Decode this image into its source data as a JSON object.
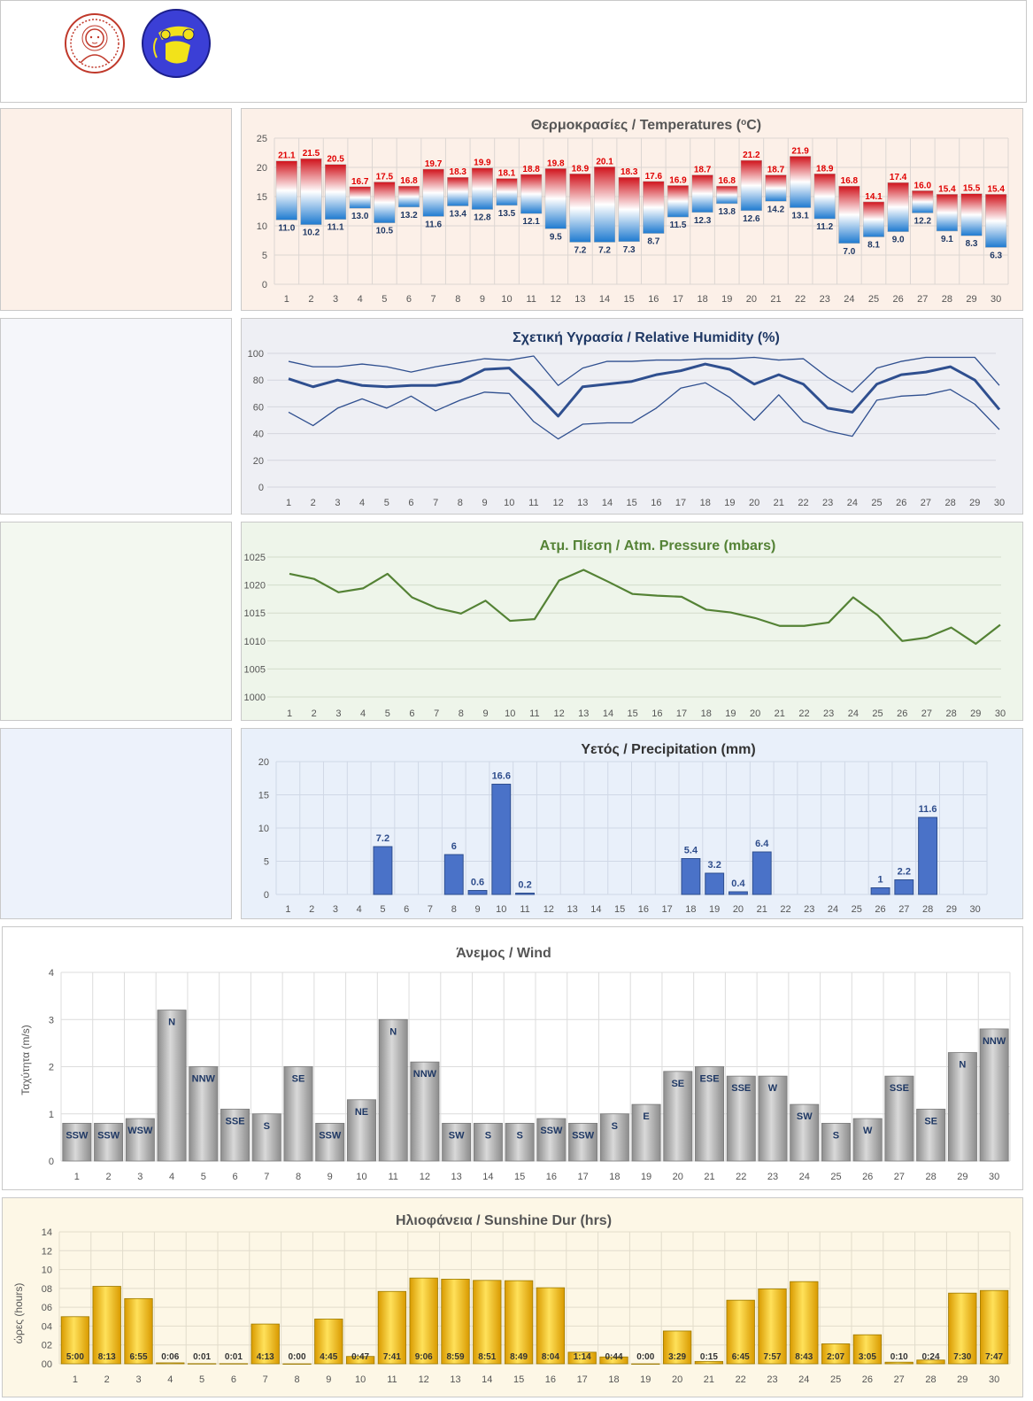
{
  "colors": {
    "temp_bg": "#fcf0e8",
    "hum_bg": "#eeeff4",
    "press_bg": "#eef5ea",
    "prec_bg": "#e9f0fa",
    "sun_bg": "#fdf7e6",
    "temp_max_label": "#e00000",
    "temp_min_label": "#1f3864",
    "humidity_line": "#2f4f8f",
    "pressure_line": "#548235",
    "pressure_title": "#548235",
    "precip_bar": "#4a72c8",
    "precip_label": "#2e4d8c",
    "wind_bar": "#a6a6a6",
    "sun_bar": "#f5c000"
  },
  "chart_data": [
    {
      "id": "temperatures",
      "type": "bar",
      "title": "Θερμοκρασίες / Temperatures (°C)",
      "title_parts": [
        "Θερμοκρασίες / Temperatures (",
        "o",
        "C)"
      ],
      "x": [
        "1",
        "2",
        "3",
        "4",
        "5",
        "6",
        "7",
        "8",
        "9",
        "10",
        "11",
        "12",
        "13",
        "14",
        "15",
        "16",
        "17",
        "18",
        "19",
        "20",
        "21",
        "22",
        "23",
        "24",
        "25",
        "26",
        "27",
        "28",
        "29",
        "30"
      ],
      "ylim": [
        0,
        25
      ],
      "yticks": [
        0,
        5,
        10,
        15,
        20,
        25
      ],
      "series": [
        {
          "name": "max",
          "values": [
            21.1,
            21.5,
            20.5,
            16.7,
            17.5,
            16.8,
            19.7,
            18.3,
            19.9,
            18.1,
            18.8,
            19.8,
            18.9,
            20.1,
            18.3,
            17.6,
            16.9,
            18.7,
            16.8,
            21.2,
            18.7,
            21.9,
            18.9,
            16.8,
            14.1,
            17.4,
            16.0,
            15.4,
            15.5,
            15.4
          ],
          "labels": [
            "21.1",
            "21.5",
            "20.5",
            "16.7",
            "17.5",
            "16.8",
            "19.7",
            "18.3",
            "19.9",
            "18.1",
            "18.8",
            "19.8",
            "18.9",
            "20.1",
            "18.3",
            "17.6",
            "16.9",
            "18.7",
            "16.8",
            "21.2",
            "18.7",
            "21.9",
            "18.9",
            "16.8",
            "14.1",
            "17.4",
            "16.0",
            "15.4",
            "15.5",
            "15.4"
          ]
        },
        {
          "name": "min",
          "values": [
            11.0,
            10.2,
            11.1,
            13.0,
            10.5,
            13.2,
            11.6,
            13.4,
            12.8,
            13.5,
            12.1,
            9.5,
            7.2,
            7.2,
            7.3,
            8.7,
            11.5,
            12.3,
            13.8,
            12.6,
            14.2,
            13.1,
            11.2,
            7.0,
            8.1,
            9.0,
            12.2,
            9.1,
            8.3,
            6.3
          ],
          "labels": [
            "11.0",
            "10.2",
            "11.1",
            "13.0",
            "10.5",
            "13.2",
            "11.6",
            "13.4",
            "12.8",
            "13.5",
            "12.1",
            "9.5",
            "7.2",
            "7.2",
            "7.3",
            "8.7",
            "11.5",
            "12.3",
            "13.8",
            "12.6",
            "14.2",
            "13.1",
            "11.2",
            "7.0",
            "8.1",
            "9.0",
            "12.2",
            "9.1",
            "8.3",
            "6.3"
          ]
        }
      ]
    },
    {
      "id": "humidity",
      "type": "line",
      "title": "Σχετική Υγρασία / Relative Humidity (%)",
      "x": [
        "1",
        "2",
        "3",
        "4",
        "5",
        "6",
        "7",
        "8",
        "9",
        "10",
        "11",
        "12",
        "13",
        "14",
        "15",
        "16",
        "17",
        "18",
        "19",
        "20",
        "21",
        "22",
        "23",
        "24",
        "25",
        "26",
        "27",
        "28",
        "29",
        "30"
      ],
      "ylim": [
        0,
        100
      ],
      "yticks": [
        0,
        20,
        40,
        60,
        80,
        100
      ],
      "series": [
        {
          "name": "max",
          "values": [
            94,
            90,
            90,
            92,
            90,
            86,
            90,
            93,
            96,
            95,
            98,
            76,
            89,
            94,
            94,
            95,
            95,
            96,
            96,
            97,
            95,
            96,
            82,
            71,
            89,
            94,
            97,
            97,
            97,
            76
          ]
        },
        {
          "name": "mean",
          "values": [
            81,
            75,
            80,
            76,
            75,
            76,
            76,
            79,
            88,
            89,
            72,
            53,
            75,
            77,
            79,
            84,
            87,
            92,
            88,
            77,
            84,
            77,
            59,
            56,
            77,
            84,
            86,
            90,
            80,
            58
          ]
        },
        {
          "name": "min",
          "values": [
            56,
            46,
            59,
            66,
            59,
            68,
            57,
            65,
            71,
            70,
            49,
            36,
            47,
            48,
            48,
            59,
            74,
            78,
            67,
            50,
            69,
            49,
            42,
            38,
            65,
            68,
            69,
            73,
            62,
            43
          ]
        }
      ]
    },
    {
      "id": "pressure",
      "type": "line",
      "title": "Ατμ. Πίεση / Atm. Pressure (mbars)",
      "x": [
        "1",
        "2",
        "3",
        "4",
        "5",
        "6",
        "7",
        "8",
        "9",
        "10",
        "11",
        "12",
        "13",
        "14",
        "15",
        "16",
        "17",
        "18",
        "19",
        "20",
        "21",
        "22",
        "23",
        "24",
        "25",
        "26",
        "27",
        "28",
        "29",
        "30"
      ],
      "ylim": [
        1000,
        1025
      ],
      "yticks": [
        1000,
        1005,
        1010,
        1015,
        1020,
        1025
      ],
      "values": [
        1022.0,
        1021.1,
        1018.7,
        1019.4,
        1022.0,
        1017.8,
        1015.9,
        1014.9,
        1017.2,
        1013.6,
        1013.9,
        1020.8,
        1022.7,
        1020.6,
        1018.4,
        1018.1,
        1017.9,
        1015.6,
        1015.1,
        1014.1,
        1012.7,
        1012.7,
        1013.3,
        1017.8,
        1014.6,
        1010.0,
        1010.6,
        1012.4,
        1009.5,
        1012.9
      ]
    },
    {
      "id": "precipitation",
      "type": "bar",
      "title": "Υετός / Precipitation (mm)",
      "x": [
        "1",
        "2",
        "3",
        "4",
        "5",
        "6",
        "7",
        "8",
        "9",
        "10",
        "11",
        "12",
        "13",
        "14",
        "15",
        "16",
        "17",
        "18",
        "19",
        "20",
        "21",
        "22",
        "23",
        "24",
        "25",
        "26",
        "27",
        "28",
        "29",
        "30"
      ],
      "ylim": [
        0,
        20
      ],
      "yticks": [
        0,
        5,
        10,
        15,
        20
      ],
      "values": [
        0,
        0,
        0,
        0,
        7.2,
        0,
        0,
        6,
        0.6,
        16.6,
        0.2,
        0,
        0,
        0,
        0,
        0,
        0,
        5.4,
        3.2,
        0.4,
        6.4,
        0,
        0,
        0,
        0,
        1,
        2.2,
        11.6,
        0,
        0
      ],
      "labels": [
        "",
        "",
        "",
        "",
        "7.2",
        "",
        "",
        "6",
        "0.6",
        "16.6",
        "0.2",
        "",
        "",
        "",
        "",
        "",
        "",
        "5.4",
        "3.2",
        "0.4",
        "6.4",
        "",
        "",
        "",
        "",
        "1",
        "2.2",
        "11.6",
        "",
        ""
      ]
    },
    {
      "id": "wind",
      "type": "bar",
      "title": "Άνεμος / Wind",
      "ylabel": "Ταχύτητα  (m/s)",
      "x": [
        "1",
        "2",
        "3",
        "4",
        "5",
        "6",
        "7",
        "8",
        "9",
        "10",
        "11",
        "12",
        "13",
        "14",
        "15",
        "16",
        "17",
        "18",
        "19",
        "20",
        "21",
        "22",
        "23",
        "24",
        "25",
        "26",
        "27",
        "28",
        "29",
        "30"
      ],
      "ylim": [
        0,
        4
      ],
      "yticks": [
        0,
        1,
        2,
        3,
        4
      ],
      "values": [
        0.8,
        0.8,
        0.9,
        3.2,
        2.0,
        1.1,
        1.0,
        2.0,
        0.8,
        1.3,
        3.0,
        2.1,
        0.8,
        0.8,
        0.8,
        0.9,
        0.8,
        1.0,
        1.2,
        1.9,
        2.0,
        1.8,
        1.8,
        1.2,
        0.8,
        0.9,
        1.8,
        1.1,
        2.3,
        2.8
      ],
      "labels": [
        "SSW",
        "SSW",
        "WSW",
        "N",
        "NNW",
        "SSE",
        "S",
        "SE",
        "SSW",
        "NE",
        "N",
        "NNW",
        "SW",
        "S",
        "S",
        "SSW",
        "SSW",
        "S",
        "E",
        "SE",
        "ESE",
        "SSE",
        "W",
        "SW",
        "S",
        "W",
        "SSE",
        "SE",
        "N",
        "NNW"
      ]
    },
    {
      "id": "sunshine",
      "type": "bar",
      "title": "Ηλιοφάνεια / Sunshine Dur (hrs)",
      "ylabel": "ώρες (hours)",
      "x": [
        "1",
        "2",
        "3",
        "4",
        "5",
        "6",
        "7",
        "8",
        "9",
        "10",
        "11",
        "12",
        "13",
        "14",
        "15",
        "16",
        "17",
        "18",
        "19",
        "20",
        "21",
        "22",
        "23",
        "24",
        "25",
        "26",
        "27",
        "28",
        "29",
        "30"
      ],
      "ylim": [
        0,
        14
      ],
      "yticks": [
        "00",
        "02",
        "04",
        "06",
        "08",
        "10",
        "12",
        "14"
      ],
      "values": [
        5.0,
        8.22,
        6.92,
        0.1,
        0.02,
        0.02,
        4.22,
        0,
        4.75,
        0.78,
        7.68,
        9.1,
        8.98,
        8.85,
        8.82,
        8.07,
        1.23,
        0.73,
        0,
        3.48,
        0.25,
        6.75,
        7.95,
        8.72,
        2.12,
        3.08,
        0.17,
        0.4,
        7.5,
        7.78
      ],
      "labels": [
        "5:00",
        "8:13",
        "6:55",
        "0:06",
        "0:01",
        "0:01",
        "4:13",
        "0:00",
        "4:45",
        "0:47",
        "7:41",
        "9:06",
        "8:59",
        "8:51",
        "8:49",
        "8:04",
        "1:14",
        "0:44",
        "0:00",
        "3:29",
        "0:15",
        "6:45",
        "7:57",
        "8:43",
        "2:07",
        "3:05",
        "0:10",
        "0:24",
        "7:30",
        "7:47"
      ]
    }
  ]
}
